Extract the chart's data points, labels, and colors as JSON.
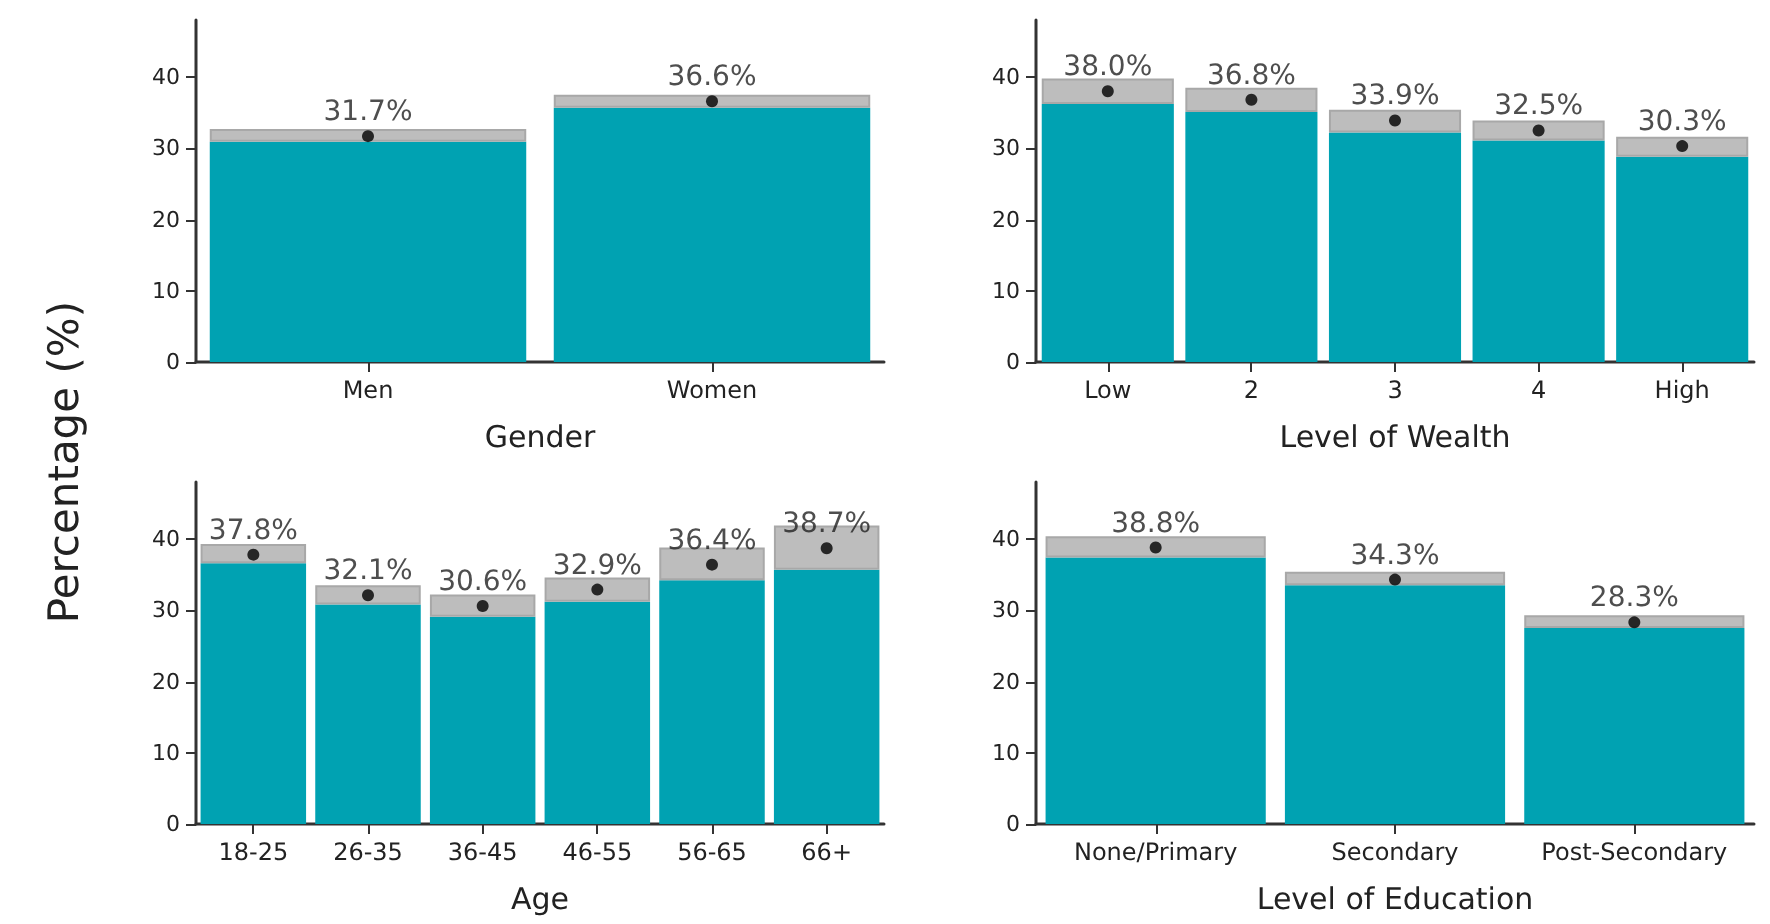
{
  "chart_data": [
    {
      "type": "bar",
      "stacked": true,
      "xlabel": "Gender",
      "ylabel": "Percentage (%)",
      "categories": [
        "Men",
        "Women"
      ],
      "ylim": [
        0,
        48
      ],
      "yticks": [
        0,
        10,
        20,
        30,
        40
      ],
      "series": [
        {
          "color": "#00a2b2",
          "values": [
            30.9,
            35.7
          ]
        },
        {
          "color": "#bdbdbd",
          "values": [
            1.8,
            1.8
          ]
        },
        {
          "type": "scatter",
          "marker": "circle",
          "color": "#000000",
          "x": [
            "Men",
            "Women"
          ],
          "values": [
            31.7,
            36.6
          ],
          "value_labels": [
            "31.7%",
            "36.6%"
          ]
        }
      ]
    },
    {
      "type": "bar",
      "stacked": true,
      "xlabel": "Level of Wealth",
      "categories": [
        "Low",
        "2",
        "3",
        "4",
        "High"
      ],
      "ylim": [
        0,
        48
      ],
      "yticks": [
        0,
        10,
        20,
        30,
        40
      ],
      "series": [
        {
          "color": "#00a2b2",
          "values": [
            36.2,
            35.1,
            32.2,
            31.1,
            28.8
          ]
        },
        {
          "color": "#bdbdbd",
          "values": [
            3.6,
            3.4,
            3.2,
            2.8,
            2.8
          ]
        },
        {
          "type": "scatter",
          "marker": "circle",
          "color": "#000000",
          "x": [
            "Low",
            "2",
            "3",
            "4",
            "High"
          ],
          "values": [
            38.0,
            36.8,
            33.9,
            32.5,
            30.3
          ],
          "value_labels": [
            "38.0%",
            "36.8%",
            "33.9%",
            "32.5%",
            "30.3%"
          ]
        }
      ]
    },
    {
      "type": "bar",
      "stacked": true,
      "xlabel": "Age",
      "categories": [
        "18-25",
        "26-35",
        "36-45",
        "46-55",
        "56-65",
        "66+"
      ],
      "ylim": [
        0,
        48
      ],
      "yticks": [
        0,
        10,
        20,
        30,
        40
      ],
      "series": [
        {
          "color": "#00a2b2",
          "values": [
            36.6,
            30.8,
            29.1,
            31.2,
            34.2,
            35.7
          ]
        },
        {
          "color": "#bdbdbd",
          "values": [
            2.7,
            2.7,
            3.1,
            3.4,
            4.6,
            6.2
          ]
        },
        {
          "type": "scatter",
          "marker": "circle",
          "color": "#000000",
          "x": [
            "18-25",
            "26-35",
            "36-45",
            "46-55",
            "56-65",
            "66+"
          ],
          "values": [
            37.8,
            32.1,
            30.6,
            32.9,
            36.4,
            38.7
          ],
          "value_labels": [
            "37.8%",
            "32.1%",
            "30.6%",
            "32.9%",
            "36.4%",
            "38.7%"
          ]
        }
      ]
    },
    {
      "type": "bar",
      "stacked": true,
      "xlabel": "Level of Education",
      "categories": [
        "None/Primary",
        "Secondary",
        "Post-Secondary"
      ],
      "ylim": [
        0,
        48
      ],
      "yticks": [
        0,
        10,
        20,
        30,
        40
      ],
      "series": [
        {
          "color": "#00a2b2",
          "values": [
            37.4,
            33.5,
            27.5
          ]
        },
        {
          "color": "#bdbdbd",
          "values": [
            3.0,
            1.9,
            1.8
          ]
        },
        {
          "type": "scatter",
          "marker": "circle",
          "color": "#000000",
          "x": [
            "None/Primary",
            "Secondary",
            "Post-Secondary"
          ],
          "values": [
            38.8,
            34.3,
            28.3
          ],
          "value_labels": [
            "38.8%",
            "34.3%",
            "28.3%"
          ]
        }
      ]
    }
  ]
}
